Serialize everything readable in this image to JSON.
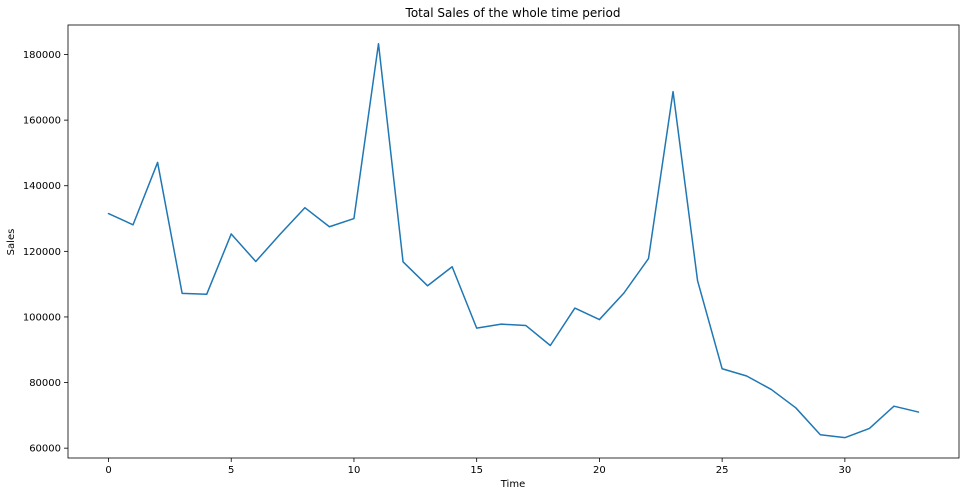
{
  "chart_data": {
    "type": "line",
    "title": "Total Sales of the whole time period",
    "xlabel": "Time",
    "ylabel": "Sales",
    "xlim": [
      -1.65,
      34.65
    ],
    "ylim": [
      57000,
      189000
    ],
    "xticks": [
      0,
      5,
      10,
      15,
      20,
      25,
      30
    ],
    "yticks": [
      60000,
      80000,
      100000,
      120000,
      140000,
      160000,
      180000
    ],
    "grid": false,
    "line_color": "#1f77b4",
    "series": [
      {
        "x": [
          0,
          1,
          2,
          3,
          4,
          5,
          6,
          7,
          8,
          9,
          10,
          11,
          12,
          13,
          14,
          15,
          16,
          17,
          18,
          19,
          20,
          21,
          22,
          23,
          24,
          25,
          26,
          27,
          28,
          29,
          30,
          31,
          32,
          33
        ],
        "values": [
          131500,
          128100,
          147100,
          107200,
          106900,
          125300,
          116900,
          125300,
          133300,
          127500,
          130000,
          183300,
          116800,
          109500,
          115300,
          96600,
          97800,
          97400,
          91300,
          102700,
          99200,
          107300,
          117800,
          168700,
          111000,
          84200,
          82000,
          77900,
          72300,
          64100,
          63200,
          66000,
          72800,
          71000
        ]
      }
    ]
  }
}
